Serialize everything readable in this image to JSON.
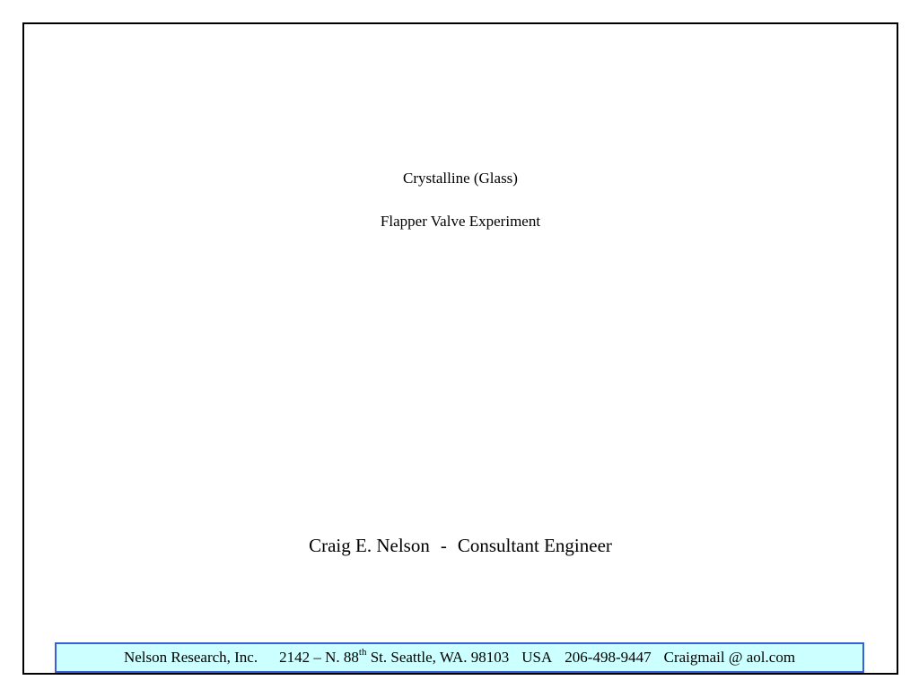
{
  "title": {
    "line1": "Crystalline (Glass)",
    "line2": "Flapper Valve Experiment"
  },
  "author": {
    "name": "Craig E. Nelson",
    "separator": "-",
    "role": "Consultant Engineer"
  },
  "footer": {
    "company": "Nelson Research, Inc.",
    "street_prefix": "2142 –  N. 88",
    "street_sup": "th",
    "street_suffix": "St. Seattle, WA. 98103",
    "country": "USA",
    "phone": "206-498-9447",
    "email": "Craigmail @ aol.com",
    "bg_color": "#ccffff",
    "border_color": "#3a5fd9"
  }
}
